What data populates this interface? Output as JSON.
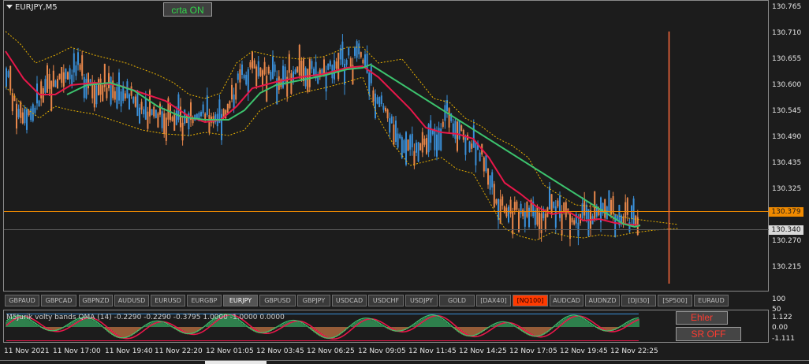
{
  "chart": {
    "symbol": "EURJPY,M5",
    "button_crta": "crta ON"
  },
  "price_axis": [
    "130.765",
    "130.710",
    "130.655",
    "130.600",
    "130.545",
    "130.490",
    "130.435",
    "130.325",
    "130.270",
    "130.215"
  ],
  "price_tags": {
    "ask": "130.379",
    "bid": "130.340"
  },
  "symbol_tabs": [
    {
      "label": "GBPAUD",
      "active": false,
      "highlight": false
    },
    {
      "label": "GBPCAD",
      "active": false,
      "highlight": false
    },
    {
      "label": "GBPNZD",
      "active": false,
      "highlight": false
    },
    {
      "label": "AUDUSD",
      "active": false,
      "highlight": false
    },
    {
      "label": "EURUSD",
      "active": false,
      "highlight": false
    },
    {
      "label": "EURGBP",
      "active": false,
      "highlight": false
    },
    {
      "label": "EURJPY",
      "active": true,
      "highlight": false
    },
    {
      "label": "GBPUSD",
      "active": false,
      "highlight": false
    },
    {
      "label": "GBPJPY",
      "active": false,
      "highlight": false
    },
    {
      "label": "USDCAD",
      "active": false,
      "highlight": false
    },
    {
      "label": "USDCHF",
      "active": false,
      "highlight": false
    },
    {
      "label": "USDJPY",
      "active": false,
      "highlight": false
    },
    {
      "label": "GOLD",
      "active": false,
      "highlight": false
    },
    {
      "label": "[DAX40]",
      "active": false,
      "highlight": false
    },
    {
      "label": "[NQ100]",
      "active": false,
      "highlight": true
    },
    {
      "label": "AUDCAD",
      "active": false,
      "highlight": false
    },
    {
      "label": "AUDNZD",
      "active": false,
      "highlight": false
    },
    {
      "label": "[DJI30]",
      "active": false,
      "highlight": false
    },
    {
      "label": "[SP500]",
      "active": false,
      "highlight": false
    },
    {
      "label": "EURAUD",
      "active": false,
      "highlight": false
    }
  ],
  "tab_axis_label": "100",
  "indicator": {
    "label": "M5Jurik volty bands QMA (14) -0.2290 -0.2290 -0.3795 1.0000 -1.0000 0.0000",
    "axis_top": "50",
    "axis": [
      "1.122",
      "0.00",
      "-1.111"
    ],
    "ehler_label": "Ehler",
    "sr_label": "SR OFF"
  },
  "time_axis": [
    "11 Nov 2021",
    "11 Nov 17:00",
    "11 Nov 19:40",
    "11 Nov 22:20",
    "12 Nov 01:05",
    "12 Nov 03:45",
    "12 Nov 06:25",
    "12 Nov 09:05",
    "12 Nov 11:45",
    "12 Nov 14:25",
    "12 Nov 17:05",
    "12 Nov 19:45",
    "12 Nov 22:25"
  ],
  "colors": {
    "background": "#1c1c1c",
    "bull_candle": "#3a8fd8",
    "bear_candle": "#e8874b",
    "red_ma": "#e8174a",
    "green_ma": "#3cc36e",
    "band": "#e9b100",
    "ask_line": "#f08a00",
    "active_tab": "#ff3a00"
  }
}
